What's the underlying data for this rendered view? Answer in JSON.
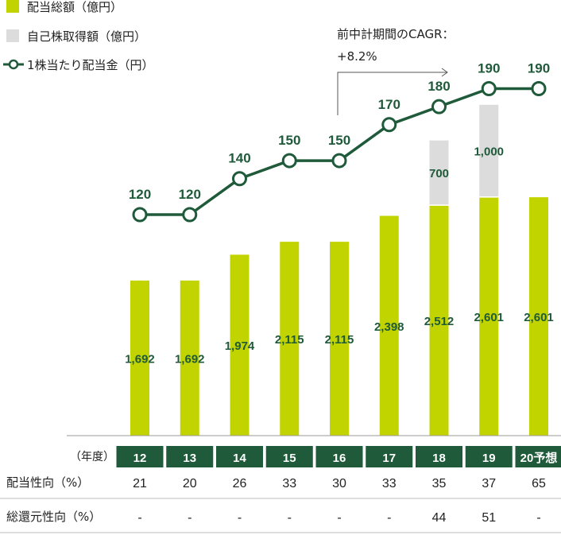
{
  "legend": {
    "dividend_total": "配当総額（億円）",
    "buyback": "自己株取得額（億円）",
    "dps": "1株当たり配当金（円）"
  },
  "cagr": {
    "line1": "前中計期間のCAGR：",
    "line2": "+8.2%"
  },
  "fiscal_year_label": "（年度）",
  "colors": {
    "dividend_bar": "#c2d400",
    "buyback_bar": "#dcdcdc",
    "dps_line": "#1f5a3a",
    "year_header_bg": "#1f5a3a"
  },
  "chart_data": {
    "type": "bar",
    "categories": [
      "12",
      "13",
      "14",
      "15",
      "16",
      "17",
      "18",
      "19",
      "20予想"
    ],
    "series": [
      {
        "name": "配当総額（億円）",
        "kind": "bar",
        "values": [
          1692,
          1692,
          1974,
          2115,
          2115,
          2398,
          2512,
          2601,
          2601
        ],
        "labels": [
          "1,692",
          "1,692",
          "1,974",
          "2,115",
          "2,115",
          "2,398",
          "2,512",
          "2,601",
          "2,601"
        ]
      },
      {
        "name": "自己株取得額（億円）",
        "kind": "bar-stacked",
        "values": [
          0,
          0,
          0,
          0,
          0,
          0,
          700,
          1000,
          0
        ],
        "labels": [
          "",
          "",
          "",
          "",
          "",
          "",
          "700",
          "1,000",
          ""
        ]
      },
      {
        "name": "1株当たり配当金（円）",
        "kind": "line",
        "values": [
          120,
          120,
          140,
          150,
          150,
          170,
          180,
          190,
          190
        ],
        "labels": [
          "120",
          "120",
          "140",
          "150",
          "150",
          "170",
          "180",
          "190",
          "190"
        ]
      }
    ]
  },
  "table": {
    "rows": [
      {
        "label": "配当性向（%）",
        "values": [
          "21",
          "20",
          "26",
          "33",
          "30",
          "33",
          "35",
          "37",
          "65"
        ]
      },
      {
        "label": "総還元性向（%）",
        "values": [
          "-",
          "-",
          "-",
          "-",
          "-",
          "-",
          "44",
          "51",
          "-"
        ]
      }
    ]
  }
}
